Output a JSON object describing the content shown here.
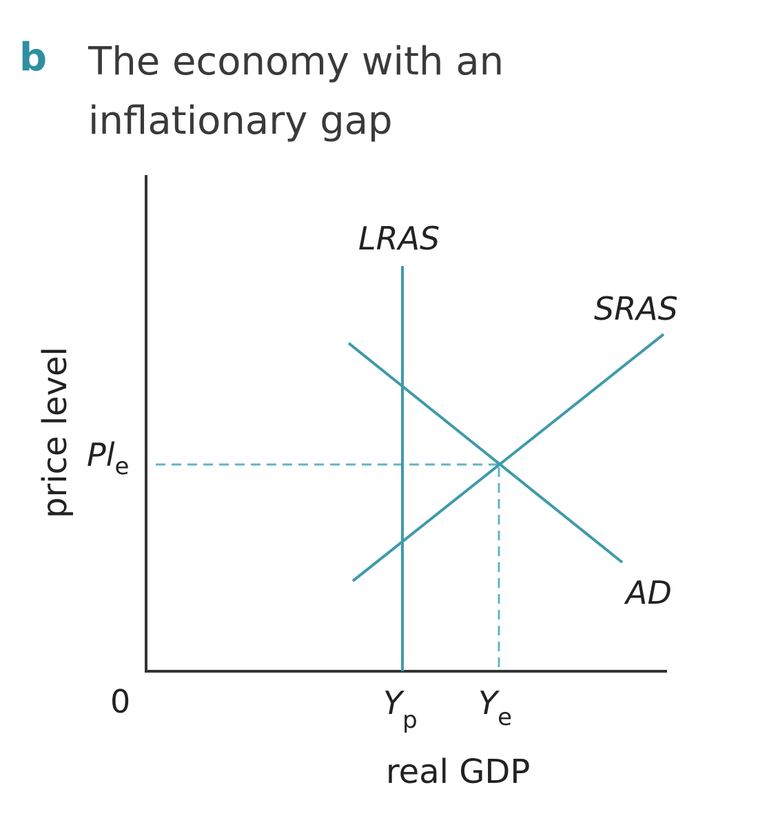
{
  "header": {
    "part_letter": "b",
    "title_line_1": "The economy with an",
    "title_line_2": "inflationary gap"
  },
  "diagram": {
    "x_axis_label": "real GDP",
    "y_axis_label": "price level",
    "origin_label": "0",
    "price_level_tick": {
      "main": "Pl",
      "subscript": "e"
    },
    "potential_output_tick": {
      "main": "Y",
      "subscript": "p"
    },
    "equilibrium_output_tick": {
      "main": "Y",
      "subscript": "e"
    },
    "curves": {
      "lras": "LRAS",
      "sras": "SRAS",
      "ad": "AD"
    },
    "colors": {
      "curve": "#3e9aab",
      "guide": "#62b4c2",
      "axis": "#333333",
      "part_letter": "#2e8fa0"
    }
  }
}
